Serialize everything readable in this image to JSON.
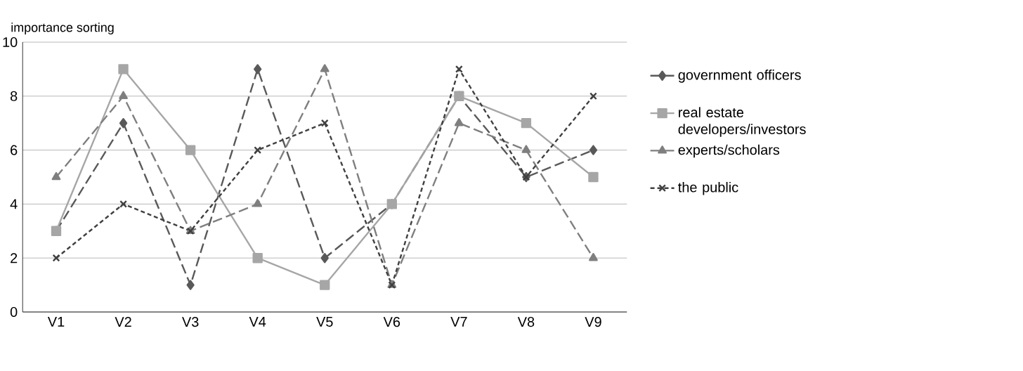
{
  "chart_data": {
    "type": "line",
    "ylabel": "importance sorting",
    "categories": [
      "V1",
      "V2",
      "V3",
      "V4",
      "V5",
      "V6",
      "V7",
      "V8",
      "V9"
    ],
    "ylim": [
      0,
      10
    ],
    "yticks": [
      0,
      2,
      4,
      6,
      8,
      10
    ],
    "grid": "y",
    "legend": "right",
    "series": [
      {
        "name": "government officers",
        "color": "#595959",
        "marker": "diamond",
        "line_style": "dashed",
        "values": [
          3,
          7,
          1,
          9,
          2,
          4,
          8,
          5,
          6
        ]
      },
      {
        "name": "real estate developers/investors",
        "color": "#a6a6a6",
        "marker": "square",
        "line_style": "solid",
        "values": [
          3,
          9,
          6,
          2,
          1,
          4,
          8,
          7,
          5
        ]
      },
      {
        "name": "experts/scholars",
        "color": "#7f7f7f",
        "marker": "triangle",
        "line_style": "dashed",
        "values": [
          5,
          8,
          3,
          4,
          9,
          1,
          7,
          6,
          2
        ]
      },
      {
        "name": "the public",
        "color": "#404040",
        "marker": "cross",
        "line_style": "dotted",
        "values": [
          2,
          4,
          3,
          6,
          7,
          1,
          9,
          5,
          8
        ]
      }
    ]
  }
}
